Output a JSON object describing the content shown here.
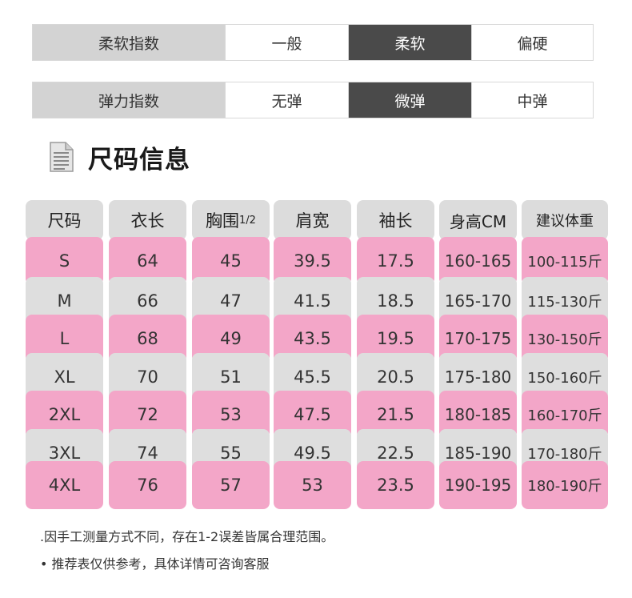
{
  "softness": {
    "label": "柔软指数",
    "options": [
      "一般",
      "柔软",
      "偏硬"
    ],
    "active_index": 1
  },
  "elasticity": {
    "label": "弹力指数",
    "options": [
      "无弹",
      "微弹",
      "中弹"
    ],
    "active_index": 1
  },
  "section": {
    "title": "尺码信息",
    "icon": "document-icon"
  },
  "size_table": {
    "headers": [
      "尺码",
      "衣长",
      "胸围",
      "肩宽",
      "袖长",
      "身高CM",
      "建议体重"
    ],
    "bust_fraction": "1/2",
    "rows": [
      [
        "S",
        "64",
        "45",
        "39.5",
        "17.5",
        "160-165",
        "100-115斤"
      ],
      [
        "M",
        "66",
        "47",
        "41.5",
        "18.5",
        "165-170",
        "115-130斤"
      ],
      [
        "L",
        "68",
        "49",
        "43.5",
        "19.5",
        "170-175",
        "130-150斤"
      ],
      [
        "XL",
        "70",
        "51",
        "45.5",
        "20.5",
        "175-180",
        "150-160斤"
      ],
      [
        "2XL",
        "72",
        "53",
        "47.5",
        "21.5",
        "180-185",
        "160-170斤"
      ],
      [
        "3XL",
        "74",
        "55",
        "49.5",
        "22.5",
        "185-190",
        "170-180斤"
      ],
      [
        "4XL",
        "76",
        "57",
        "53",
        "23.5",
        "190-195",
        "180-190斤"
      ]
    ]
  },
  "notes": [
    ".因手工测量方式不同，存在1-2误差皆属合理范围。",
    "• 推荐表仅供参考，具体详情可咨询客服"
  ],
  "colors": {
    "pink_row": "#f3a6c8",
    "gray_row": "#dedede",
    "active_option": "#4a4a4a",
    "label_bg": "#d3d3d3"
  }
}
